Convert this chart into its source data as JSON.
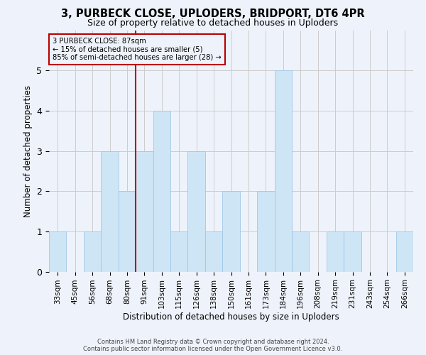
{
  "title_line1": "3, PURBECK CLOSE, UPLODERS, BRIDPORT, DT6 4PR",
  "title_line2": "Size of property relative to detached houses in Uploders",
  "xlabel": "Distribution of detached houses by size in Uploders",
  "ylabel": "Number of detached properties",
  "categories": [
    "33sqm",
    "45sqm",
    "56sqm",
    "68sqm",
    "80sqm",
    "91sqm",
    "103sqm",
    "115sqm",
    "126sqm",
    "138sqm",
    "150sqm",
    "161sqm",
    "173sqm",
    "184sqm",
    "196sqm",
    "208sqm",
    "219sqm",
    "231sqm",
    "243sqm",
    "254sqm",
    "266sqm"
  ],
  "values": [
    1,
    0,
    1,
    3,
    2,
    3,
    4,
    1,
    3,
    1,
    2,
    0,
    2,
    5,
    1,
    0,
    1,
    1,
    0,
    0,
    1
  ],
  "bar_color": "#cde5f5",
  "bar_edge_color": "#a0c8e8",
  "grid_color": "#cccccc",
  "vline_position": 4.5,
  "vline_color": "#bb0000",
  "annotation_line1": "3 PURBECK CLOSE: 87sqm",
  "annotation_line2": "← 15% of detached houses are smaller (5)",
  "annotation_line3": "85% of semi-detached houses are larger (28) →",
  "annotation_box_edgecolor": "#bb0000",
  "ylim": [
    0,
    6
  ],
  "yticks": [
    0,
    1,
    2,
    3,
    4,
    5,
    6
  ],
  "background_color": "#eef3fb",
  "footer_line1": "Contains HM Land Registry data © Crown copyright and database right 2024.",
  "footer_line2": "Contains public sector information licensed under the Open Government Licence v3.0."
}
